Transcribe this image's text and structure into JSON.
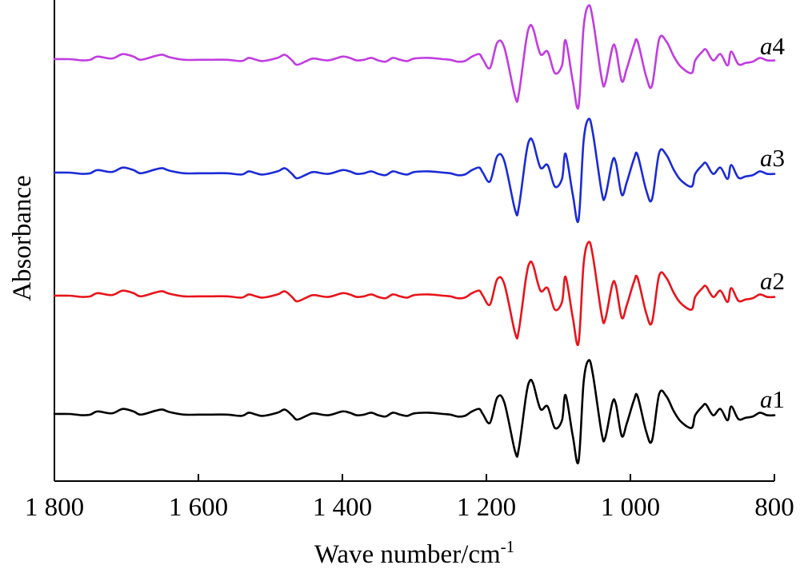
{
  "chart_data": {
    "type": "line",
    "title": "",
    "xlabel_base": "Wave number/cm",
    "xlabel_sup": "-1",
    "ylabel": "Absorbance",
    "xlim": [
      1800,
      800
    ],
    "x_reversed": true,
    "x_ticks": [
      {
        "value": 1800,
        "label": "1 800"
      },
      {
        "value": 1600,
        "label": "1 600"
      },
      {
        "value": 1400,
        "label": "1 400"
      },
      {
        "value": 1200,
        "label": "1 200"
      },
      {
        "value": 1000,
        "label": "1 000"
      },
      {
        "value": 800,
        "label": "800"
      }
    ],
    "y_ticks_shown": false,
    "grid": false,
    "legend": "inline labels at right end of each trace",
    "offset_stacked": true,
    "series": [
      {
        "label_italic": "a",
        "label_num": "1",
        "color": "#000000"
      },
      {
        "label_italic": "a",
        "label_num": "2",
        "color": "#e8141b"
      },
      {
        "label_italic": "a",
        "label_num": "3",
        "color": "#1b2bd6"
      },
      {
        "label_italic": "a",
        "label_num": "4",
        "color": "#c13ce0"
      }
    ],
    "shared_x": [
      1800,
      1780,
      1770,
      1760,
      1750,
      1740,
      1720,
      1705,
      1690,
      1680,
      1660,
      1650,
      1640,
      1620,
      1600,
      1580,
      1560,
      1540,
      1530,
      1520,
      1510,
      1490,
      1480,
      1470,
      1463,
      1450,
      1440,
      1420,
      1400,
      1390,
      1380,
      1370,
      1360,
      1350,
      1340,
      1330,
      1320,
      1310,
      1300,
      1280,
      1260,
      1250,
      1240,
      1230,
      1220,
      1210,
      1205,
      1195,
      1185,
      1175,
      1160,
      1155,
      1145,
      1140,
      1135,
      1125,
      1115,
      1105,
      1095,
      1090,
      1080,
      1072,
      1065,
      1058,
      1052,
      1040,
      1035,
      1025,
      1020,
      1012,
      1005,
      995,
      990,
      978,
      970,
      960,
      950,
      940,
      930,
      915,
      910,
      900,
      895,
      885,
      875,
      865,
      860,
      850,
      840,
      830,
      820,
      810,
      800
    ],
    "base_shape": [
      0,
      0,
      -1,
      -2,
      -1,
      4,
      1,
      8,
      4,
      -1,
      5,
      7,
      3,
      -1,
      -1,
      -1,
      -1,
      -3,
      2,
      -1,
      -3,
      2,
      7,
      -2,
      -9,
      -3,
      1,
      -2,
      4,
      2,
      -2,
      -1,
      2,
      -2,
      -4,
      2,
      -1,
      -3,
      1,
      2,
      0,
      -1,
      -4,
      -3,
      4,
      8,
      0,
      -14,
      26,
      18,
      -60,
      -55,
      28,
      52,
      48,
      8,
      12,
      -22,
      -10,
      30,
      -35,
      -75,
      50,
      85,
      62,
      -30,
      -38,
      18,
      15,
      -35,
      -15,
      22,
      28,
      -28,
      -42,
      32,
      28,
      5,
      -12,
      -22,
      -2,
      12,
      15,
      -2,
      8,
      -10,
      12,
      -8,
      -6,
      -4,
      2,
      -2,
      -2
    ],
    "values": {
      "a1": [
        0,
        0,
        -1,
        -2,
        -1,
        4,
        1,
        8,
        4,
        -1,
        5,
        7,
        3,
        -1,
        -1,
        -1,
        -1,
        -3,
        2,
        -1,
        -3,
        2,
        7,
        -2,
        -9,
        -3,
        1,
        -2,
        4,
        2,
        -2,
        -1,
        2,
        -2,
        -4,
        2,
        -1,
        -3,
        1,
        2,
        0,
        -1,
        -4,
        -3,
        4,
        8,
        0,
        -14,
        26,
        18,
        -60,
        -55,
        28,
        52,
        48,
        8,
        12,
        -22,
        -10,
        30,
        -35,
        -75,
        50,
        85,
        62,
        -30,
        -38,
        18,
        15,
        -35,
        -15,
        22,
        28,
        -28,
        -42,
        32,
        28,
        5,
        -12,
        -22,
        -2,
        12,
        15,
        -2,
        8,
        -10,
        12,
        -8,
        -6,
        -4,
        2,
        -2,
        -2
      ],
      "a2": [
        0,
        0,
        -1,
        -2,
        -1,
        4,
        1,
        8,
        4,
        -1,
        5,
        7,
        3,
        -1,
        -1,
        -1,
        -1,
        -3,
        2,
        -1,
        -3,
        2,
        7,
        -2,
        -9,
        -3,
        1,
        -2,
        4,
        2,
        -2,
        -1,
        2,
        -2,
        -4,
        2,
        -1,
        -3,
        1,
        2,
        0,
        -1,
        -4,
        -3,
        4,
        8,
        0,
        -14,
        26,
        18,
        -60,
        -55,
        28,
        52,
        48,
        8,
        12,
        -22,
        -10,
        30,
        -35,
        -75,
        50,
        85,
        62,
        -30,
        -38,
        18,
        15,
        -35,
        -15,
        22,
        28,
        -28,
        -42,
        32,
        28,
        5,
        -12,
        -22,
        -2,
        12,
        15,
        -2,
        8,
        -10,
        12,
        -8,
        -6,
        -4,
        2,
        -2,
        -2
      ],
      "a3": [
        0,
        0,
        -1,
        -2,
        -1,
        4,
        1,
        8,
        4,
        -1,
        5,
        7,
        3,
        -1,
        -1,
        -1,
        -1,
        -3,
        2,
        -1,
        -3,
        2,
        7,
        -2,
        -9,
        -3,
        1,
        -2,
        4,
        2,
        -2,
        -1,
        2,
        -2,
        -4,
        2,
        -1,
        -3,
        1,
        2,
        0,
        -1,
        -4,
        -3,
        4,
        8,
        0,
        -14,
        26,
        18,
        -60,
        -55,
        28,
        52,
        48,
        8,
        12,
        -22,
        -10,
        30,
        -35,
        -75,
        50,
        85,
        62,
        -30,
        -38,
        18,
        15,
        -35,
        -15,
        22,
        28,
        -28,
        -42,
        32,
        28,
        5,
        -12,
        -22,
        -2,
        12,
        15,
        -2,
        8,
        -10,
        12,
        -8,
        -6,
        -4,
        2,
        -2,
        -2
      ],
      "a4": [
        0,
        0,
        -1,
        -2,
        -1,
        4,
        1,
        8,
        4,
        -1,
        5,
        7,
        3,
        -1,
        -1,
        -1,
        -1,
        -3,
        2,
        -1,
        -3,
        2,
        7,
        -2,
        -9,
        -3,
        1,
        -2,
        4,
        2,
        -2,
        -1,
        2,
        -2,
        -4,
        2,
        -1,
        -3,
        1,
        2,
        0,
        -1,
        -4,
        -3,
        4,
        8,
        0,
        -14,
        26,
        18,
        -60,
        -55,
        28,
        52,
        48,
        8,
        12,
        -22,
        -10,
        30,
        -35,
        -75,
        50,
        85,
        62,
        -30,
        -38,
        18,
        15,
        -35,
        -15,
        22,
        28,
        -28,
        -42,
        32,
        28,
        5,
        -12,
        -22,
        -2,
        12,
        15,
        -2,
        8,
        -10,
        12,
        -8,
        -6,
        -4,
        2,
        -2,
        -2
      ]
    }
  }
}
